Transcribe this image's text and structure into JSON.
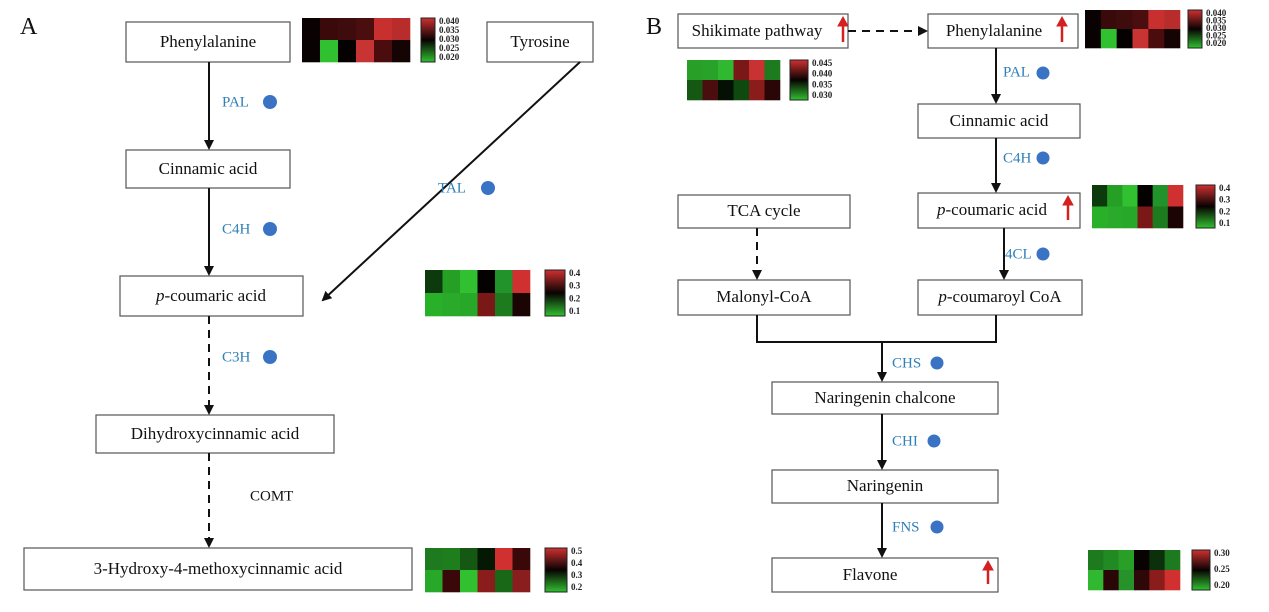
{
  "panels": {
    "a": "A",
    "b": "B"
  },
  "colors": {
    "enzyme_label": "#2f7fb8",
    "enzyme_dot": "#3a73c4",
    "up_arrow": "#d42020"
  },
  "nodes": {
    "a_phe": "Phenylalanine",
    "a_tyr": "Tyrosine",
    "a_cin": "Cinnamic acid",
    "a_pcou_italic": "p",
    "a_pcou": "-coumaric acid",
    "a_dihy": "Dihydroxycinnamic acid",
    "a_hmc": "3-Hydroxy-4-methoxycinnamic acid",
    "b_shik": "Shikimate pathway",
    "b_phe": "Phenylalanine",
    "b_cin": "Cinnamic acid",
    "b_pcou_italic": "p",
    "b_pcou": "-coumaric acid",
    "b_tca": "TCA cycle",
    "b_mal": "Malonyl-CoA",
    "b_pcoa_italic": "p",
    "b_pcoa": "-coumaroyl CoA",
    "b_nchal": "Naringenin chalcone",
    "b_nar": "Naringenin",
    "b_flav": "Flavone"
  },
  "enzymes": {
    "a_pal": "PAL",
    "a_c4h": "C4H",
    "a_tal": "TAL",
    "a_c3h": "C3H",
    "a_comt": "COMT",
    "b_pal": "PAL",
    "b_c4h": "C4H",
    "b_4cl": "4CL",
    "b_chs": "CHS",
    "b_chi": "CHI",
    "b_fns": "FNS"
  },
  "heatmaps": [
    {
      "id": "a-phenylalanine",
      "ticks": [
        "0.040",
        "0.035",
        "0.030",
        "0.025",
        "0.020"
      ],
      "cells": [
        [
          "#0a0202",
          "#3a0a0a",
          "#3e0c0c",
          "#4a0e0e",
          "#c83030",
          "#b82c2c"
        ],
        [
          "#080202",
          "#30c030",
          "#060101",
          "#c83434",
          "#4a0c0c",
          "#150404"
        ]
      ]
    },
    {
      "id": "a-pcoumaric",
      "ticks": [
        "0.4",
        "0.3",
        "0.2",
        "0.1"
      ],
      "cells": [
        [
          "#0c3a0c",
          "#25a025",
          "#30c030",
          "#060101",
          "#22922a",
          "#d03030"
        ],
        [
          "#28b028",
          "#2aaa2a",
          "#28a828",
          "#7a1818",
          "#1e7a1e",
          "#1a0404"
        ]
      ]
    },
    {
      "id": "a-hmc",
      "ticks": [
        "0.5",
        "0.4",
        "0.3",
        "0.2"
      ],
      "cells": [
        [
          "#1e7a1e",
          "#1e7e1e",
          "#145814",
          "#041804",
          "#d03030",
          "#3a0808"
        ],
        [
          "#28a828",
          "#3a0808",
          "#30c030",
          "#8a1c1c",
          "#186818",
          "#8a1e1e"
        ]
      ]
    },
    {
      "id": "b-shikimate",
      "ticks": [
        "0.045",
        "0.040",
        "0.035",
        "0.030"
      ],
      "cells": [
        [
          "#28a028",
          "#28a228",
          "#30b830",
          "#7a1818",
          "#c83232",
          "#1e7a1e"
        ],
        [
          "#145814",
          "#4a0e0e",
          "#041004",
          "#0e4a10",
          "#8a1c1c",
          "#2a0606"
        ]
      ]
    },
    {
      "id": "b-phenylalanine",
      "ticks": [
        "0.040",
        "0.035",
        "0.030",
        "0.025",
        "0.020"
      ],
      "cells": [
        [
          "#0a0202",
          "#3a0a0a",
          "#3e0c0c",
          "#4a0e0e",
          "#c83030",
          "#b82c2c"
        ],
        [
          "#080202",
          "#30c030",
          "#060101",
          "#c83434",
          "#4a0c0c",
          "#150404"
        ]
      ]
    },
    {
      "id": "b-pcoumaric",
      "ticks": [
        "0.4",
        "0.3",
        "0.2",
        "0.1"
      ],
      "cells": [
        [
          "#0c3a0c",
          "#25a025",
          "#30c030",
          "#060101",
          "#22922a",
          "#d03030"
        ],
        [
          "#28b028",
          "#2aaa2a",
          "#28a828",
          "#7a1818",
          "#1e7a1e",
          "#1a0404"
        ]
      ]
    },
    {
      "id": "b-flavone",
      "ticks": [
        "0.30",
        "0.25",
        "0.20"
      ],
      "cells": [
        [
          "#1e7a1e",
          "#228a22",
          "#28a028",
          "#080202",
          "#0c300c",
          "#1e7a1e"
        ],
        [
          "#30b830",
          "#2a0606",
          "#26922a",
          "#2e0808",
          "#8a1c1c",
          "#d03030"
        ]
      ]
    }
  ]
}
